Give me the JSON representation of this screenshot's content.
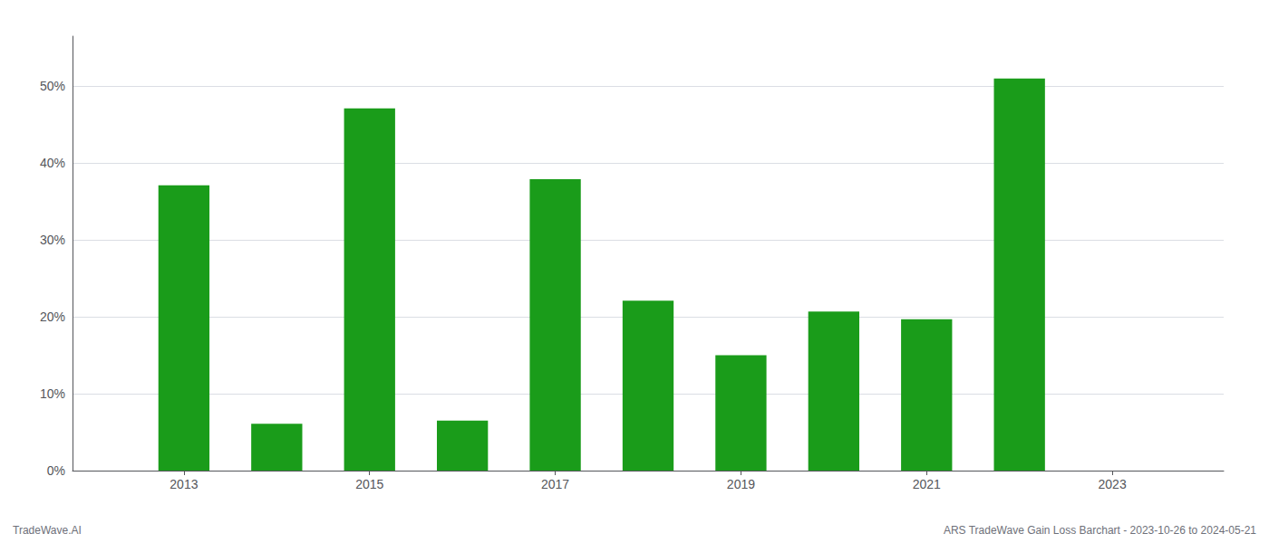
{
  "chart_data": {
    "type": "bar",
    "x": [
      2013,
      2014,
      2015,
      2016,
      2017,
      2018,
      2019,
      2020,
      2021,
      2022
    ],
    "values": [
      0.371,
      0.061,
      0.471,
      0.065,
      0.379,
      0.221,
      0.15,
      0.207,
      0.197,
      0.51
    ],
    "color": "#1a9c1a",
    "xlim": [
      2011.8,
      2024.2
    ],
    "xticks": [
      2013,
      2015,
      2017,
      2019,
      2021,
      2023
    ],
    "ylim": [
      0,
      0.565
    ],
    "yticks": [
      {
        "value": 0,
        "label": "0%"
      },
      {
        "value": 0.1,
        "label": "10%"
      },
      {
        "value": 0.2,
        "label": "20%"
      },
      {
        "value": 0.3,
        "label": "30%"
      },
      {
        "value": 0.4,
        "label": "40%"
      },
      {
        "value": 0.5,
        "label": "50%"
      }
    ],
    "grid": true,
    "annotations": [
      "TradeWave.AI",
      "ARS TradeWave Gain Loss Barchart - 2023-10-26 to 2024-05-21"
    ]
  }
}
